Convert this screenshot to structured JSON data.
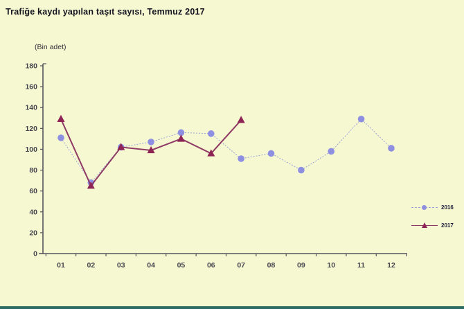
{
  "page": {
    "background_color": "#f6f8d2",
    "footer_bar_color": "#2e6b60"
  },
  "chart_data": {
    "type": "line",
    "title": "Trafiğe kaydı yapılan taşıt sayısı, Temmuz 2017",
    "unit_label": "(Bin adet)",
    "categories": [
      "01",
      "02",
      "03",
      "04",
      "05",
      "06",
      "07",
      "08",
      "09",
      "10",
      "11",
      "12"
    ],
    "ylim": [
      0,
      180
    ],
    "ytick_step": 20,
    "grid": false,
    "legend_position": "right",
    "axis_color": "#55555c",
    "tick_label_color": "#46464d",
    "series": [
      {
        "name": "2016",
        "marker": "circle",
        "marker_color": "#8f8fe2",
        "line_color": "#9aa2d4",
        "line_style": "dashed",
        "values": [
          111,
          68,
          102,
          107,
          116,
          115,
          91,
          96,
          80,
          98,
          129,
          101
        ]
      },
      {
        "name": "2017",
        "marker": "triangle",
        "marker_color": "#8e2456",
        "line_color": "#8e3a64",
        "line_style": "solid",
        "values": [
          129,
          65,
          102,
          99,
          110,
          96,
          128
        ]
      }
    ]
  }
}
